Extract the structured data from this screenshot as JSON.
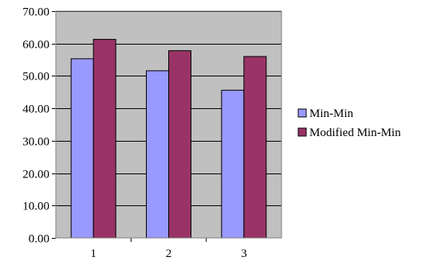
{
  "chart_data": {
    "type": "bar",
    "categories": [
      "1",
      "2",
      "3"
    ],
    "series": [
      {
        "name": "Min-Min",
        "values": [
          55.3,
          51.6,
          45.6
        ],
        "color": "#9999ff"
      },
      {
        "name": "Modified Min-Min",
        "values": [
          61.3,
          57.8,
          56.0
        ],
        "color": "#993366"
      }
    ],
    "ylim": [
      0,
      70
    ],
    "yticks": [
      0,
      10,
      20,
      30,
      40,
      50,
      60,
      70
    ],
    "ytick_labels": [
      "0.00",
      "10.00",
      "20.00",
      "30.00",
      "40.00",
      "50.00",
      "60.00",
      "70.00"
    ],
    "grid": true,
    "legend_position": "right",
    "plot_background": "#c0c0c0",
    "gridline_color": "#000000",
    "title": "",
    "xlabel": "",
    "ylabel": ""
  }
}
